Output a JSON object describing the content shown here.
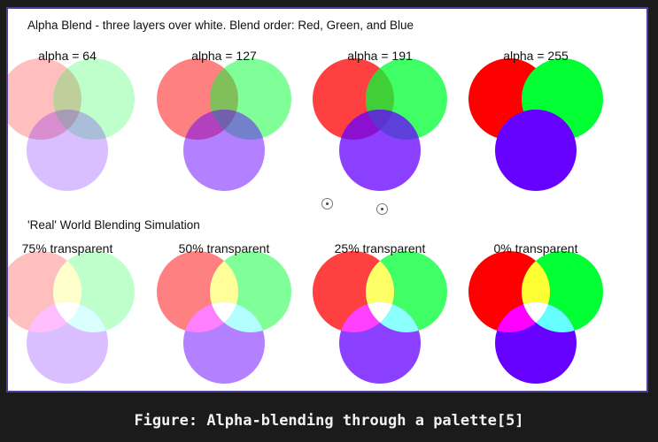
{
  "figure": {
    "top_title": "Alpha Blend - three layers over white. Blend order: Red, Green, and Blue",
    "bottom_title": "'Real' World Blending Simulation",
    "caption": "Figure: Alpha-blending through a palette[5]",
    "colors": {
      "red": "#ff0000",
      "green": "#00ff33",
      "blue": "#6600ff",
      "frame_border": "#4b3f9e",
      "page_background": "#1b1b1b"
    },
    "alpha_blend_panels": [
      {
        "label": "alpha = 64",
        "alpha": 64
      },
      {
        "label": "alpha = 127",
        "alpha": 127
      },
      {
        "label": "alpha = 191",
        "alpha": 191
      },
      {
        "label": "alpha = 255",
        "alpha": 255
      }
    ],
    "real_blend_panels": [
      {
        "label": "75% transparent",
        "opacity": 0.25
      },
      {
        "label": "50% transparent",
        "opacity": 0.5
      },
      {
        "label": "25% transparent",
        "opacity": 0.75
      },
      {
        "label": "0% transparent",
        "opacity": 1.0
      }
    ]
  }
}
